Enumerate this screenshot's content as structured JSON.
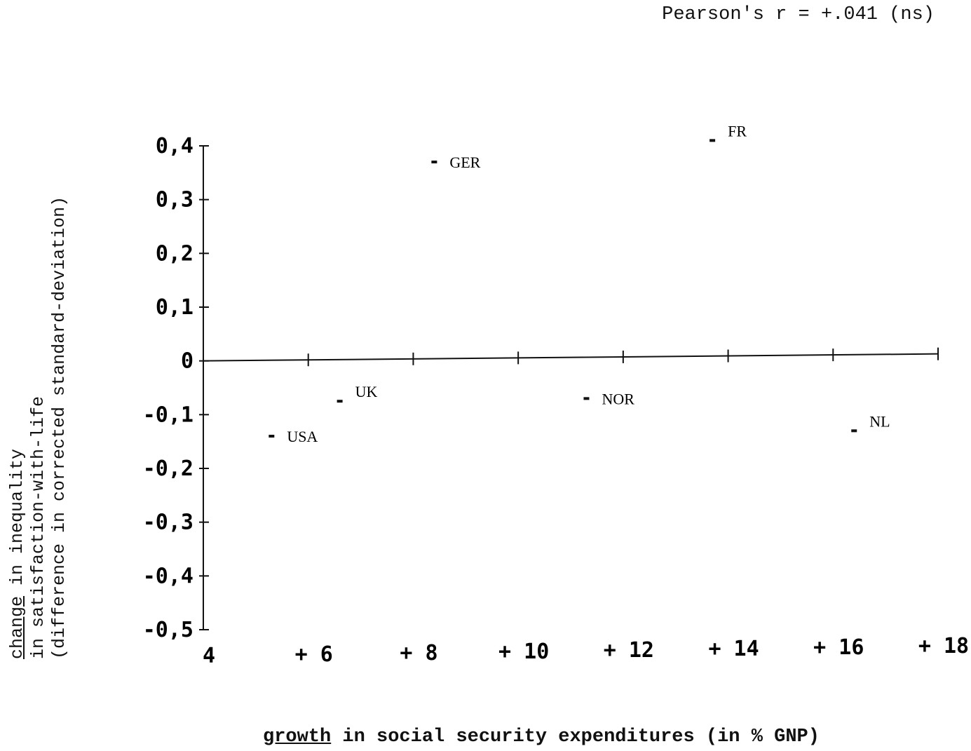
{
  "annotation": "Pearson's r = +.041 (ns)",
  "chart_data": {
    "type": "scatter",
    "title": "",
    "annotation": "Pearson's r = +.041 (ns)",
    "xlabel": {
      "underlined": "growth",
      "rest": " in social security expenditures (in % GNP)"
    },
    "ylabel": {
      "line1_underlined": "change",
      "line1_rest": " in inequality",
      "line2": "in satisfaction-with-life",
      "line3": "(difference in corrected standard-deviation)"
    },
    "xlim": [
      4,
      18
    ],
    "ylim": [
      -0.5,
      0.4
    ],
    "x_ticks": [
      4,
      6,
      8,
      10,
      12,
      14,
      16,
      18
    ],
    "x_tick_labels": [
      "4",
      "+ 6",
      "+ 8",
      "+ 10",
      "+ 12",
      "+ 14",
      "+ 16",
      "+ 18"
    ],
    "y_ticks": [
      0.4,
      0.3,
      0.2,
      0.1,
      0,
      -0.1,
      -0.2,
      -0.3,
      -0.4,
      -0.5
    ],
    "y_tick_labels": [
      "0,4",
      "0,3",
      "0,2",
      "0,1",
      "0",
      "-0,1",
      "-0,2",
      "-0,3",
      "-0,4",
      "-0,5"
    ],
    "grid": false,
    "points": [
      {
        "label": "USA",
        "x": 5.3,
        "y": -0.14
      },
      {
        "label": "UK",
        "x": 6.6,
        "y": -0.075
      },
      {
        "label": "GER",
        "x": 8.4,
        "y": 0.37
      },
      {
        "label": "NOR",
        "x": 11.3,
        "y": -0.07
      },
      {
        "label": "FR",
        "x": 13.7,
        "y": 0.41
      },
      {
        "label": "NL",
        "x": 16.4,
        "y": -0.13
      }
    ]
  }
}
